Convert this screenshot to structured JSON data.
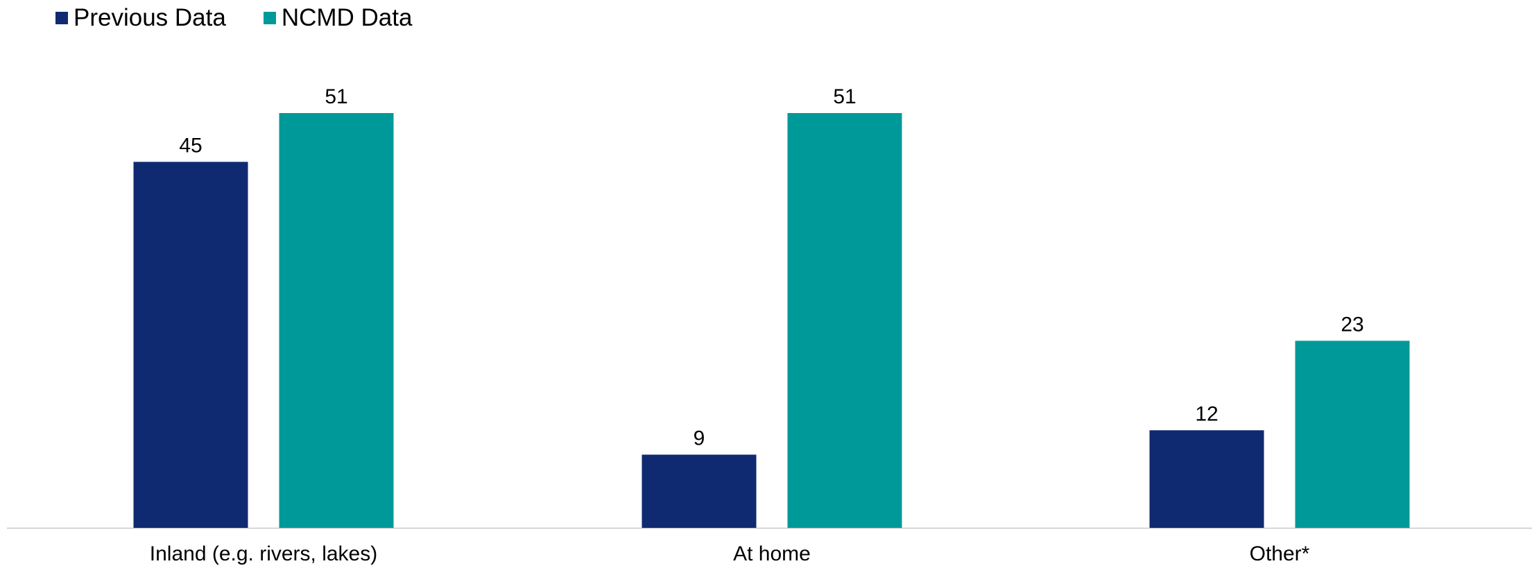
{
  "chart_data": {
    "type": "bar",
    "title": "",
    "xlabel": "",
    "ylabel": "",
    "categories": [
      "Inland (e.g. rivers, lakes)",
      "At home",
      "Other*"
    ],
    "series": [
      {
        "name": "Previous Data",
        "color": "#0f2a70",
        "values": [
          45,
          9,
          12
        ]
      },
      {
        "name": "NCMD Data",
        "color": "#009999",
        "values": [
          51,
          51,
          23
        ]
      }
    ],
    "ylim": [
      0,
      51
    ],
    "grid": false,
    "legend": "top-left",
    "data_labels": true
  }
}
